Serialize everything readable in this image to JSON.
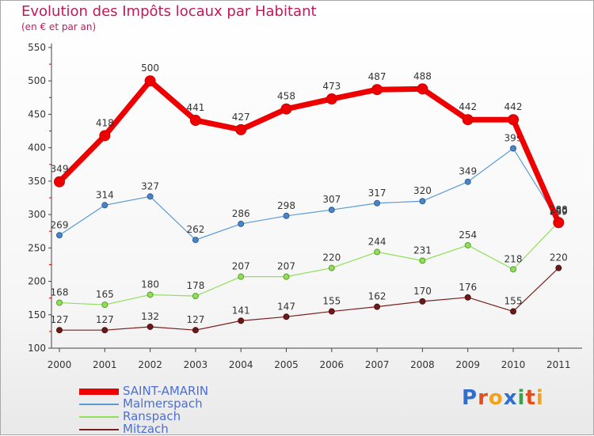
{
  "header": {
    "title": "Evolution des Impôts locaux par Habitant",
    "subtitle": "(en € et par an)"
  },
  "logo": {
    "text": "Proxiti",
    "letter_colors": [
      "#2e6fd1",
      "#e74c1c",
      "#f2a31b",
      "#2e6fd1",
      "#3aa34c",
      "#e74c1c",
      "#f2a31b"
    ]
  },
  "chart_data": {
    "type": "line",
    "title": "Evolution des Impôts locaux par Habitant",
    "subtitle": "(en € et par an)",
    "xlabel": "",
    "ylabel": "",
    "ylim": [
      100,
      550
    ],
    "yticks": [
      100,
      150,
      200,
      250,
      300,
      350,
      400,
      450,
      500,
      550
    ],
    "grid": false,
    "legend_position": "bottom-left",
    "categories": [
      "2000",
      "2001",
      "2002",
      "2003",
      "2004",
      "2005",
      "2006",
      "2007",
      "2008",
      "2009",
      "2010",
      "2011"
    ],
    "series": [
      {
        "name": "SAINT-AMARIN",
        "color": "#ee0000",
        "values": [
          349,
          418,
          500,
          441,
          427,
          458,
          473,
          487,
          488,
          442,
          442,
          288
        ],
        "labels": [
          "349",
          "418",
          "500",
          "441",
          "427",
          "458",
          "473",
          "487",
          "488",
          "442",
          "442",
          "288"
        ]
      },
      {
        "name": "Malmerspach",
        "color": "#5b9bd5",
        "values": [
          269,
          314,
          327,
          262,
          286,
          298,
          307,
          317,
          320,
          349,
          399,
          290
        ],
        "labels": [
          "269",
          "314",
          "327",
          "262",
          "286",
          "298",
          "307",
          "317",
          "320",
          "349",
          "399",
          "290"
        ]
      },
      {
        "name": "Ranspach",
        "color": "#8fdf5a",
        "values": [
          168,
          165,
          180,
          178,
          207,
          207,
          220,
          244,
          231,
          254,
          218,
          289
        ],
        "labels": [
          "168",
          "165",
          "180",
          "178",
          "207",
          "207",
          "220",
          "244",
          "231",
          "254",
          "218",
          "289"
        ]
      },
      {
        "name": "Mitzach",
        "color": "#7a1f1f",
        "values": [
          127,
          127,
          132,
          127,
          141,
          147,
          155,
          162,
          170,
          176,
          155,
          220
        ],
        "labels": [
          "127",
          "127",
          "132",
          "127",
          "141",
          "147",
          "155",
          "162",
          "170",
          "176",
          "155",
          "220"
        ]
      }
    ]
  }
}
